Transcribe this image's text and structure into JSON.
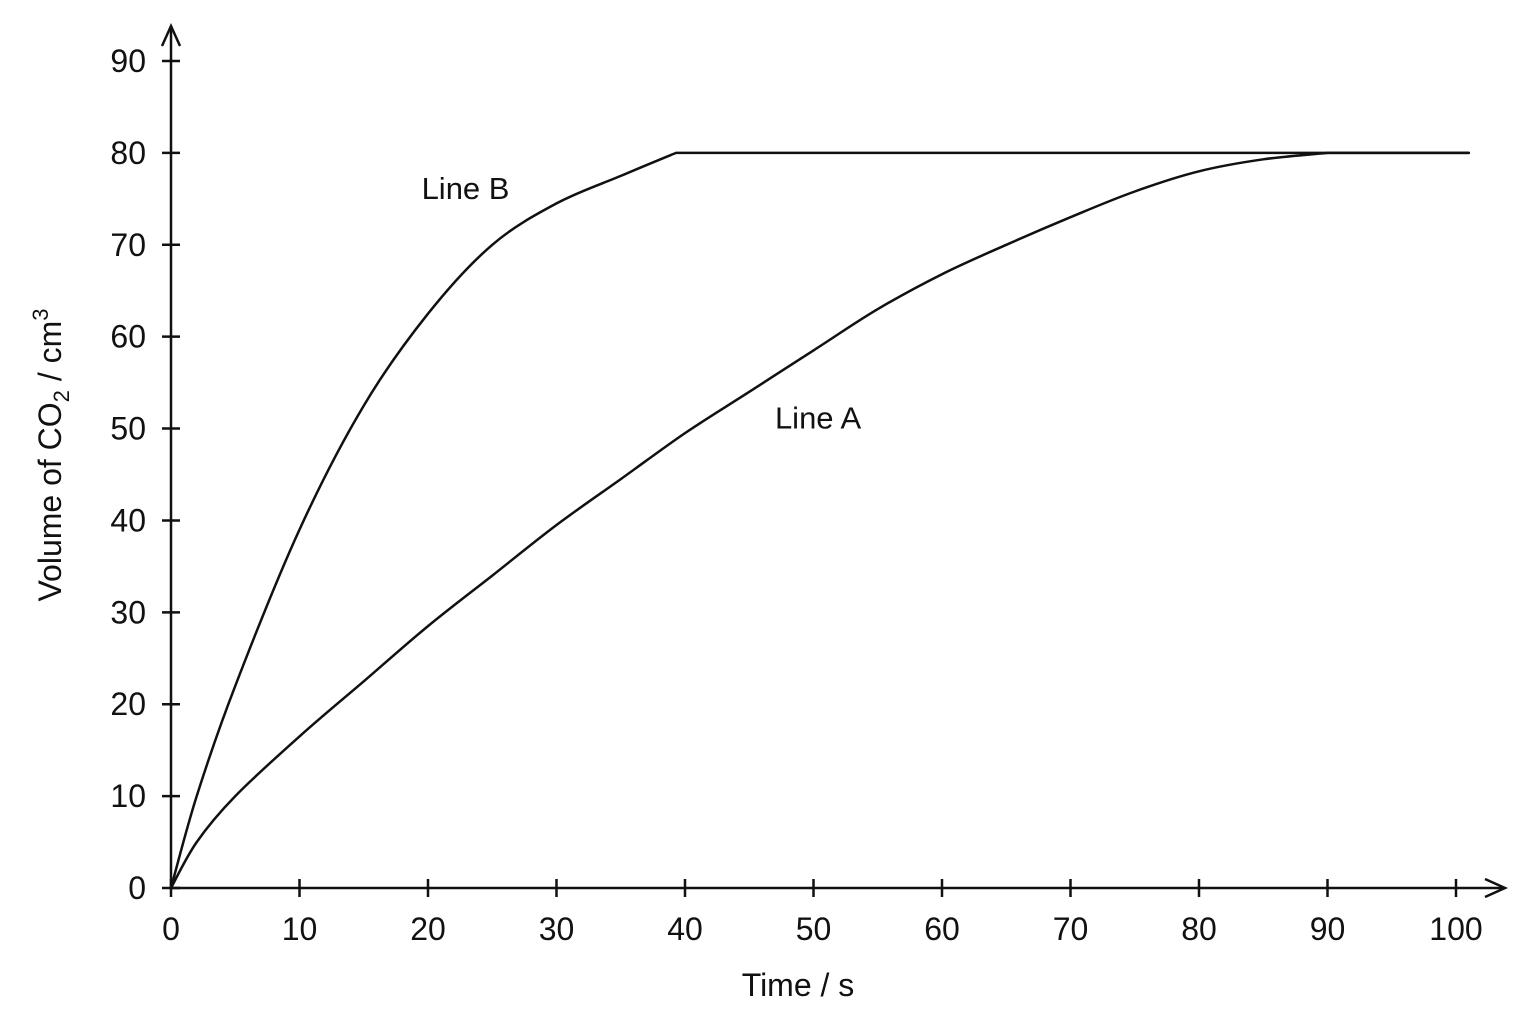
{
  "chart_data": {
    "type": "line",
    "title": "",
    "xlabel": "Time / s",
    "ylabel": {
      "prefix": "Volume of CO",
      "subscript": "2",
      "middle": " / cm",
      "superscript": "3"
    },
    "xlim": [
      0,
      100
    ],
    "ylim": [
      0,
      90
    ],
    "xticks": [
      0,
      10,
      20,
      30,
      40,
      50,
      60,
      70,
      80,
      90,
      100
    ],
    "yticks": [
      0,
      10,
      20,
      30,
      40,
      50,
      60,
      70,
      80,
      90
    ],
    "grid": false,
    "legend": "none",
    "series": [
      {
        "name": "Line A",
        "label_position": {
          "x": 47,
          "y": 50
        },
        "x": [
          0,
          2,
          5,
          10,
          15,
          20,
          25,
          30,
          35,
          40,
          45,
          50,
          55,
          60,
          65,
          70,
          75,
          80,
          85,
          90,
          101
        ],
        "y": [
          0,
          5,
          10,
          16.5,
          22.5,
          28.5,
          34,
          39.5,
          44.5,
          49.5,
          54,
          58.5,
          63,
          66.8,
          70,
          73,
          75.8,
          78,
          79.3,
          80,
          80
        ]
      },
      {
        "name": "Line B",
        "label_position": {
          "x": 19.5,
          "y": 75
        },
        "x": [
          0,
          2,
          5,
          10,
          15,
          20,
          25,
          30,
          35,
          39.3,
          101
        ],
        "y": [
          0,
          10,
          22,
          39,
          52.5,
          62.5,
          70,
          74.5,
          77.5,
          80,
          80
        ]
      }
    ]
  }
}
